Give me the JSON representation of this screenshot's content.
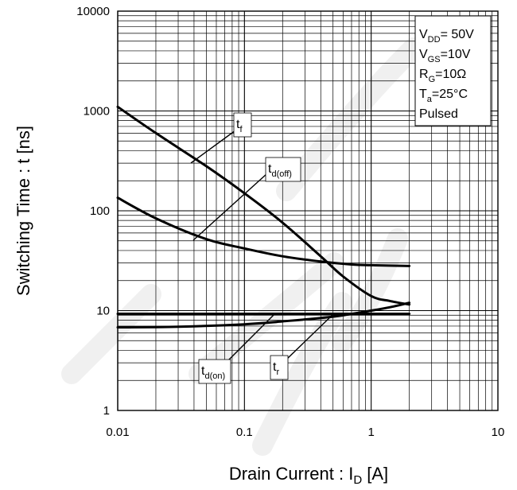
{
  "chart_data": {
    "type": "line",
    "xscale": "log",
    "yscale": "log",
    "xlim": [
      0.01,
      10
    ],
    "ylim": [
      1,
      10000
    ],
    "grid": true,
    "xlabel": {
      "main": "Drain Current : I",
      "sub": "D",
      "unit": " [A]"
    },
    "ylabel": "Switching Time : t [ns]",
    "xticks": [
      "0.01",
      "0.1",
      "1",
      "10"
    ],
    "yticks": [
      "1",
      "10",
      "100",
      "1000",
      "10000"
    ],
    "conditions": [
      {
        "main": "V",
        "sub": "DD",
        "rest": "= 50V"
      },
      {
        "main": "V",
        "sub": "GS",
        "rest": "=10V"
      },
      {
        "main": "R",
        "sub": "G",
        "rest": "=10Ω"
      },
      {
        "main": "T",
        "sub": "a",
        "rest": "=25°C"
      },
      {
        "main": "Pulsed",
        "sub": "",
        "rest": ""
      }
    ],
    "series": [
      {
        "name": "t_f",
        "label_main": "t",
        "label_sub": "f",
        "x": [
          0.01,
          0.02,
          0.05,
          0.1,
          0.2,
          0.4,
          0.6,
          1.0,
          1.4,
          2.0
        ],
        "y": [
          1100,
          600,
          280,
          150,
          76,
          35,
          22,
          14,
          12.5,
          11.5
        ]
      },
      {
        "name": "t_d(off)",
        "label_main": "t",
        "label_sub": "d(off)",
        "x": [
          0.01,
          0.02,
          0.05,
          0.1,
          0.2,
          0.4,
          0.7,
          1.0,
          2.0
        ],
        "y": [
          135,
          84,
          52,
          42,
          35,
          31,
          29,
          28.5,
          28
        ]
      },
      {
        "name": "t_d(on)",
        "label_main": "t",
        "label_sub": "d(on)",
        "x": [
          0.01,
          0.1,
          0.5,
          1.0,
          2.0
        ],
        "y": [
          9.3,
          9.3,
          9.3,
          9.3,
          9.3
        ]
      },
      {
        "name": "t_r",
        "label_main": "t",
        "label_sub": "r",
        "x": [
          0.01,
          0.03,
          0.1,
          0.2,
          0.5,
          1.0,
          1.5,
          2.0
        ],
        "y": [
          6.8,
          6.9,
          7.3,
          7.8,
          8.7,
          10,
          11,
          12
        ]
      }
    ]
  }
}
